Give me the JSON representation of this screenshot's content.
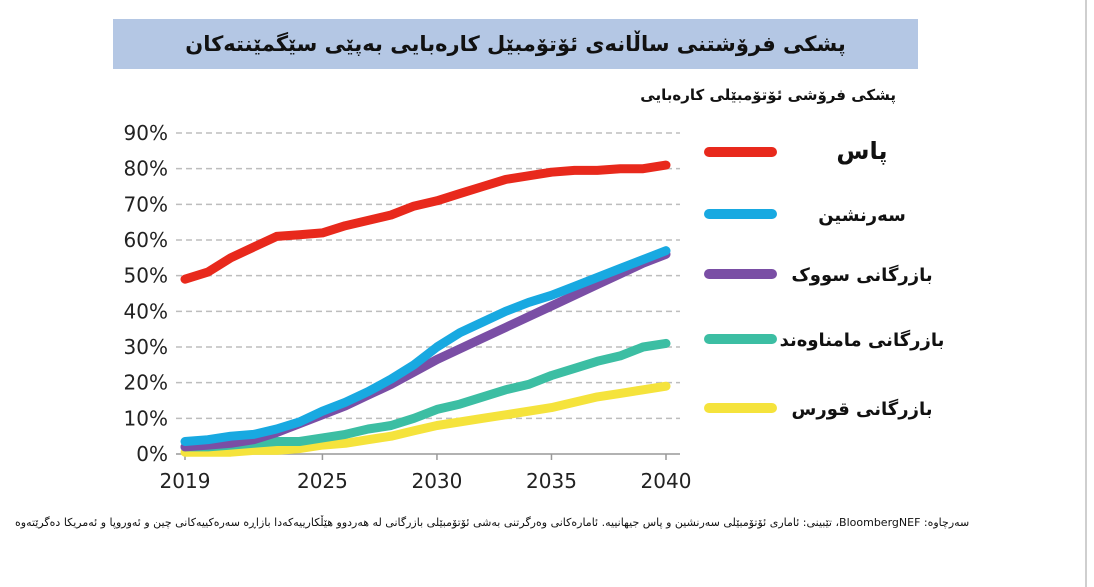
{
  "title": "پشکی فرۆشتنی ساڵانەی ئۆتۆمبێل کارەبایی بەپێی سێگمێنتەکان",
  "footnote": "سەرچاوە: BloombergNEF، تێبینی: ئاماری ئۆتۆمبێلی سەرنشین و پاس جیهانییە. ئامارەکانی وەرگرتنی بەشی ئۆتۆمبێلی بازرگانی لە هەردوو هێڵکارییەکەدا بازاڕە سەرەکییەکانی چین و ئەوروپا و ئەمریکا دەگرێتەوە",
  "chart_data": {
    "type": "line",
    "title": "پشکی فرۆشی ئۆتۆمبێلی کارەبایی",
    "x": [
      2019,
      2020,
      2021,
      2022,
      2023,
      2024,
      2025,
      2026,
      2027,
      2028,
      2029,
      2030,
      2031,
      2032,
      2033,
      2034,
      2035,
      2036,
      2037,
      2038,
      2039,
      2040
    ],
    "xticks": [
      "2019",
      "2025",
      "2030",
      "2035",
      "2040"
    ],
    "yticks": [
      "0%",
      "10%",
      "20%",
      "30%",
      "40%",
      "50%",
      "60%",
      "70%",
      "80%",
      "90%"
    ],
    "ylim": [
      0,
      90
    ],
    "grid": true,
    "legend_position": "right",
    "series": [
      {
        "name": "پاس",
        "color": "#e8291c",
        "values": [
          49,
          51,
          55,
          58,
          61,
          61.5,
          62,
          64,
          65.5,
          67,
          69.5,
          71,
          73,
          75,
          77,
          78,
          79,
          79.5,
          79.5,
          80,
          80,
          81
        ]
      },
      {
        "name": "سەرنشین",
        "color": "#18a9e1",
        "values": [
          3.5,
          4,
          5,
          5.5,
          7,
          9,
          12,
          14.5,
          17.5,
          21,
          25,
          30,
          34,
          37,
          40,
          42.5,
          44.5,
          47,
          49.5,
          52,
          54.5,
          57
        ]
      },
      {
        "name": "بازرگانی سووک",
        "color": "#7a4ea5",
        "values": [
          2,
          2.5,
          3,
          4,
          6,
          8.5,
          11,
          13.5,
          16.5,
          19.5,
          23,
          26.5,
          29.5,
          32.5,
          35.5,
          38.5,
          41.5,
          44.5,
          47.5,
          50.5,
          53.5,
          56
        ]
      },
      {
        "name": "بازرگانی مامناوەند",
        "color": "#3cbea3",
        "values": [
          2,
          2,
          2.5,
          3,
          3.5,
          3.5,
          4.5,
          5.5,
          7,
          8,
          10,
          12.5,
          14,
          16,
          18,
          19.5,
          22,
          24,
          26,
          27.5,
          30,
          31
        ]
      },
      {
        "name": "بازرگانی قورس",
        "color": "#f5e33c",
        "values": [
          0.5,
          0.5,
          0.5,
          1,
          1,
          1.5,
          2.5,
          3,
          4,
          5,
          6.5,
          8,
          9,
          10,
          11,
          12,
          13,
          14.5,
          16,
          17,
          18,
          19
        ]
      }
    ]
  }
}
